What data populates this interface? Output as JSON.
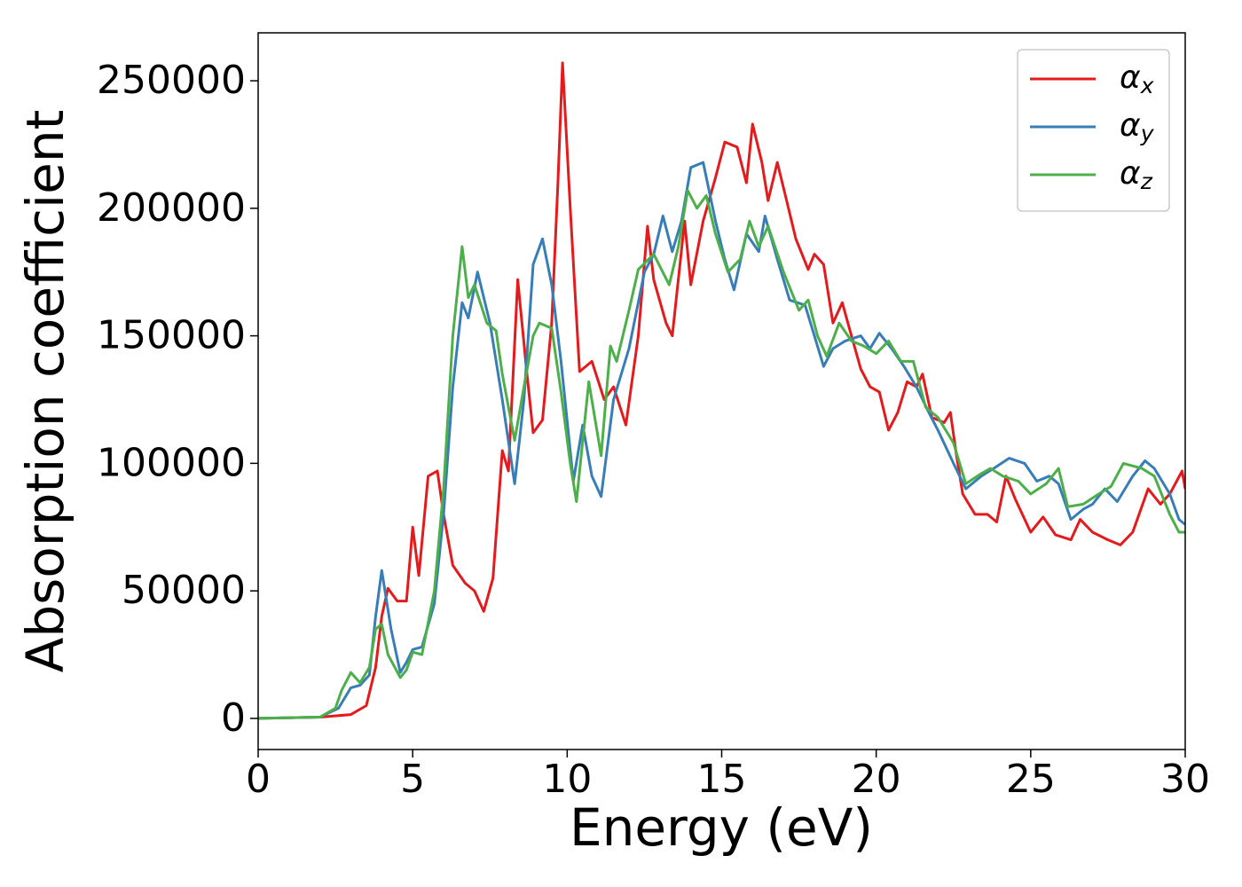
{
  "chart_data": {
    "type": "line",
    "xlabel": "Energy (eV)",
    "ylabel": "Absorption coefficient",
    "xlim": [
      0,
      30
    ],
    "ylim": [
      -12200,
      268800
    ],
    "xticks": [
      0,
      5,
      10,
      15,
      20,
      25,
      30
    ],
    "yticks": [
      0,
      50000,
      100000,
      150000,
      200000,
      250000
    ],
    "legend": "upper right",
    "series": [
      {
        "name": "αx",
        "color": "#e41a1c",
        "x": [
          0,
          2,
          3,
          3.5,
          3.8,
          4.0,
          4.2,
          4.5,
          4.8,
          5.0,
          5.2,
          5.5,
          5.8,
          6.0,
          6.3,
          6.7,
          7.0,
          7.3,
          7.6,
          7.9,
          8.1,
          8.4,
          8.7,
          8.9,
          9.2,
          9.5,
          9.7,
          9.85,
          10.1,
          10.4,
          10.8,
          11.2,
          11.5,
          11.9,
          12.3,
          12.6,
          12.8,
          13.2,
          13.4,
          13.8,
          14.0,
          14.4,
          14.8,
          15.1,
          15.5,
          15.8,
          16.0,
          16.3,
          16.5,
          16.8,
          17.1,
          17.4,
          17.8,
          18.0,
          18.3,
          18.6,
          18.9,
          19.2,
          19.5,
          19.8,
          20.1,
          20.4,
          20.7,
          21.0,
          21.3,
          21.5,
          21.8,
          22.2,
          22.4,
          22.6,
          22.8,
          23.2,
          23.6,
          23.9,
          24.2,
          24.5,
          25.0,
          25.4,
          25.8,
          26.3,
          26.6,
          27.0,
          27.5,
          27.9,
          28.3,
          28.8,
          29.2,
          29.5,
          29.9,
          30
        ],
        "values": [
          0,
          500,
          1500,
          5000,
          20000,
          40000,
          51000,
          46000,
          46000,
          75000,
          56000,
          95000,
          97000,
          80000,
          60000,
          53000,
          50000,
          42000,
          55000,
          105000,
          97000,
          172000,
          135000,
          112000,
          117000,
          155000,
          210000,
          257000,
          200000,
          136000,
          140000,
          125000,
          130000,
          115000,
          150000,
          193000,
          172000,
          155000,
          150000,
          195000,
          170000,
          195000,
          212000,
          226000,
          224000,
          210000,
          233000,
          218000,
          203000,
          218000,
          203000,
          188000,
          176000,
          182000,
          178000,
          155000,
          163000,
          150000,
          137000,
          130000,
          128000,
          113000,
          120000,
          132000,
          130000,
          135000,
          118000,
          116000,
          120000,
          103000,
          88000,
          80000,
          80000,
          77000,
          95000,
          86000,
          73000,
          79000,
          72000,
          70000,
          78000,
          73000,
          70000,
          68000,
          73000,
          90000,
          84000,
          88000,
          97000,
          90000
        ]
      },
      {
        "name": "αy",
        "color": "#377eb8",
        "x": [
          0,
          2,
          2.6,
          3.0,
          3.3,
          3.6,
          3.8,
          4.0,
          4.3,
          4.6,
          4.8,
          5.0,
          5.3,
          5.7,
          6.0,
          6.3,
          6.6,
          6.8,
          7.1,
          7.5,
          7.9,
          8.3,
          8.6,
          8.9,
          9.2,
          9.5,
          9.8,
          10.2,
          10.5,
          10.8,
          11.1,
          11.5,
          12.0,
          12.5,
          12.8,
          13.1,
          13.4,
          13.7,
          14.0,
          14.4,
          14.8,
          15.1,
          15.4,
          15.8,
          16.2,
          16.4,
          16.8,
          17.2,
          17.7,
          18.0,
          18.3,
          18.6,
          19.0,
          19.5,
          19.8,
          20.1,
          20.5,
          20.9,
          21.3,
          21.7,
          22.0,
          22.5,
          22.9,
          23.4,
          23.8,
          24.3,
          24.8,
          25.2,
          25.6,
          25.9,
          26.3,
          26.7,
          27.0,
          27.4,
          27.8,
          28.3,
          28.7,
          29.0,
          29.5,
          29.8,
          30
        ],
        "values": [
          0,
          500,
          4000,
          12000,
          13000,
          17000,
          40000,
          58000,
          35000,
          18000,
          22000,
          27000,
          28000,
          45000,
          80000,
          130000,
          163000,
          157000,
          175000,
          155000,
          125000,
          92000,
          125000,
          178000,
          188000,
          170000,
          140000,
          93000,
          115000,
          95000,
          87000,
          125000,
          145000,
          175000,
          182000,
          197000,
          183000,
          195000,
          216000,
          218000,
          195000,
          180000,
          168000,
          190000,
          183000,
          197000,
          180000,
          164000,
          162000,
          150000,
          138000,
          145000,
          148000,
          150000,
          145000,
          151000,
          145000,
          138000,
          130000,
          120000,
          113000,
          100000,
          90000,
          95000,
          98000,
          102000,
          100000,
          93000,
          95000,
          92000,
          78000,
          82000,
          84000,
          90000,
          85000,
          95000,
          101000,
          98000,
          88000,
          78000,
          76000
        ]
      },
      {
        "name": "αz",
        "color": "#4daf4a",
        "x": [
          0,
          2,
          2.5,
          2.7,
          3.0,
          3.3,
          3.6,
          3.8,
          4.0,
          4.2,
          4.6,
          4.8,
          5.0,
          5.3,
          5.7,
          6.0,
          6.3,
          6.6,
          6.8,
          7.0,
          7.4,
          7.7,
          7.9,
          8.3,
          8.6,
          8.9,
          9.1,
          9.5,
          9.8,
          10.1,
          10.3,
          10.7,
          11.1,
          11.4,
          11.6,
          12.0,
          12.3,
          12.8,
          13.3,
          13.6,
          13.9,
          14.2,
          14.5,
          14.8,
          15.2,
          15.6,
          15.9,
          16.2,
          16.5,
          17.0,
          17.5,
          17.8,
          18.1,
          18.4,
          18.8,
          19.2,
          19.6,
          20.0,
          20.4,
          20.8,
          21.2,
          21.6,
          22.0,
          22.5,
          22.9,
          23.4,
          23.7,
          24.1,
          24.6,
          25.0,
          25.5,
          25.9,
          26.2,
          26.7,
          27.2,
          27.6,
          28.0,
          28.6,
          29.0,
          29.5,
          29.8,
          30
        ],
        "values": [
          0,
          500,
          4000,
          11000,
          18000,
          14000,
          20000,
          35000,
          37000,
          25000,
          16000,
          19000,
          26000,
          25000,
          50000,
          90000,
          150000,
          185000,
          165000,
          170000,
          155000,
          152000,
          135000,
          109000,
          130000,
          150000,
          155000,
          153000,
          128000,
          100000,
          85000,
          132000,
          103000,
          146000,
          140000,
          160000,
          176000,
          182000,
          170000,
          185000,
          207000,
          200000,
          205000,
          190000,
          175000,
          180000,
          195000,
          185000,
          193000,
          175000,
          160000,
          164000,
          150000,
          142000,
          155000,
          148000,
          146000,
          143000,
          148000,
          140000,
          140000,
          122000,
          118000,
          108000,
          92000,
          96000,
          98000,
          95000,
          93000,
          88000,
          92000,
          98000,
          83000,
          84000,
          88000,
          91000,
          100000,
          98000,
          95000,
          80000,
          73000,
          73000
        ]
      }
    ]
  }
}
